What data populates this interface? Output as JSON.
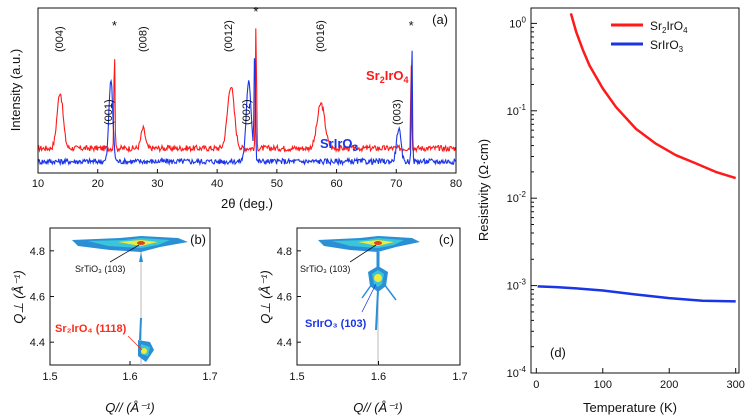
{
  "chart_data": [
    {
      "id": "a",
      "type": "line",
      "panel_label": "(a)",
      "xlabel": "2θ (deg.)",
      "ylabel": "Intensity (a.u.)",
      "xlim": [
        10,
        80
      ],
      "xticks": [
        10,
        20,
        30,
        40,
        50,
        60,
        70,
        80
      ],
      "series": [
        {
          "name": "Sr2IrO4",
          "label_parts": [
            "Sr",
            "2",
            "IrO",
            "4"
          ],
          "color": "#ff1a1a",
          "baseline": 0.15,
          "peaks": [
            {
              "x": 13.7,
              "h": 0.34,
              "w": 0.7
            },
            {
              "x": 22.8,
              "h": 0.62,
              "w": 0.12
            },
            {
              "x": 27.6,
              "h": 0.12,
              "w": 0.5
            },
            {
              "x": 42.3,
              "h": 0.38,
              "w": 0.8
            },
            {
              "x": 46.5,
              "h": 0.75,
              "w": 0.12
            },
            {
              "x": 57.4,
              "h": 0.27,
              "w": 0.9
            },
            {
              "x": 72.5,
              "h": 0.53,
              "w": 0.12
            }
          ]
        },
        {
          "name": "SrIrO3",
          "label_parts": [
            "SrIrO",
            "3",
            "",
            ""
          ],
          "color": "#1a35e6",
          "baseline": 0.07,
          "peaks": [
            {
              "x": 22.2,
              "h": 0.5,
              "w": 0.45
            },
            {
              "x": 45.3,
              "h": 0.48,
              "w": 0.6
            },
            {
              "x": 46.3,
              "h": 0.7,
              "w": 0.15
            },
            {
              "x": 70.4,
              "h": 0.2,
              "w": 0.5
            },
            {
              "x": 72.6,
              "h": 0.72,
              "w": 0.13
            }
          ]
        }
      ],
      "peak_labels_red": [
        {
          "text": "(004)",
          "x": 13.5
        },
        {
          "text": "(008)",
          "x": 27.5
        },
        {
          "text": "(0012)",
          "x": 41.8
        },
        {
          "text": "(0016)",
          "x": 57.2
        }
      ],
      "peak_labels_blue": [
        {
          "text": "(001)",
          "x": 21.7
        },
        {
          "text": "(002)",
          "x": 44.8
        },
        {
          "text": "(003)",
          "x": 70.0
        }
      ],
      "substrate_markers": [
        {
          "text": "*",
          "x": 22.8
        },
        {
          "text": "*",
          "x": 46.5
        },
        {
          "text": "*",
          "x": 72.5
        }
      ]
    },
    {
      "id": "b",
      "type": "heatmap",
      "panel_label": "(b)",
      "xlabel": "Q// (Å⁻¹)",
      "ylabel": "Q⊥ (Å⁻¹)",
      "xlim": [
        1.5,
        1.7
      ],
      "ylim": [
        4.3,
        4.9
      ],
      "xticks": [
        "1.5",
        "1.6",
        "1.7"
      ],
      "yticks": [
        "4.4",
        "4.6",
        "4.8"
      ],
      "annotations": [
        {
          "label": "SrTiO3 (103)",
          "text": "SrTiO₃ (103)",
          "color": "#111111"
        },
        {
          "label": "Sr2IrO4 (1118)",
          "text": "Sr₂IrO₄ (1118)",
          "color": "#ff2a1a"
        }
      ]
    },
    {
      "id": "c",
      "type": "heatmap",
      "panel_label": "(c)",
      "xlabel": "Q// (Å⁻¹)",
      "ylabel": "Q⊥ (Å⁻¹)",
      "xlim": [
        1.5,
        1.7
      ],
      "ylim": [
        4.3,
        4.9
      ],
      "xticks": [
        "1.5",
        "1.6",
        "1.7"
      ],
      "yticks": [
        "4.4",
        "4.6",
        "4.8"
      ],
      "annotations": [
        {
          "label": "SrTiO3 (103)",
          "text": "SrTiO₃ (103)",
          "color": "#111111"
        },
        {
          "label": "SrIrO3 (103)",
          "text": "SrIrO₃ (103)",
          "color": "#1a35e6"
        }
      ]
    },
    {
      "id": "d",
      "type": "line",
      "panel_label": "(d)",
      "xlabel": "Temperature (K)",
      "ylabel": "Resistivity (Ω·cm)",
      "yscale": "log",
      "xlim": [
        -8,
        305
      ],
      "ylim": [
        0.0001,
        1.5
      ],
      "xticks": [
        0,
        100,
        200,
        300
      ],
      "yticks": [
        {
          "value": 0.0001,
          "m": "10",
          "e": "-4"
        },
        {
          "value": 0.001,
          "m": "10",
          "e": "-3"
        },
        {
          "value": 0.01,
          "m": "10",
          "e": "-2"
        },
        {
          "value": 0.1,
          "m": "10",
          "e": "-1"
        },
        {
          "value": 1,
          "m": "10",
          "e": "0"
        }
      ],
      "legend_position": "top-right",
      "series": [
        {
          "name": "Sr2IrO4",
          "label_parts": [
            "Sr",
            "2",
            "IrO",
            "4"
          ],
          "color": "#ff1a1a",
          "x": [
            52,
            60,
            70,
            80,
            100,
            120,
            150,
            180,
            210,
            240,
            270,
            300
          ],
          "y": [
            1.3,
            0.8,
            0.5,
            0.33,
            0.18,
            0.11,
            0.062,
            0.042,
            0.031,
            0.025,
            0.02,
            0.017
          ]
        },
        {
          "name": "SrIrO3",
          "label_parts": [
            "SrIrO",
            "3",
            "",
            ""
          ],
          "color": "#1a35e6",
          "x": [
            2,
            30,
            60,
            100,
            150,
            200,
            250,
            300
          ],
          "y": [
            0.00098,
            0.00096,
            0.00093,
            0.00088,
            0.00079,
            0.00072,
            0.00067,
            0.00066
          ]
        }
      ]
    }
  ]
}
